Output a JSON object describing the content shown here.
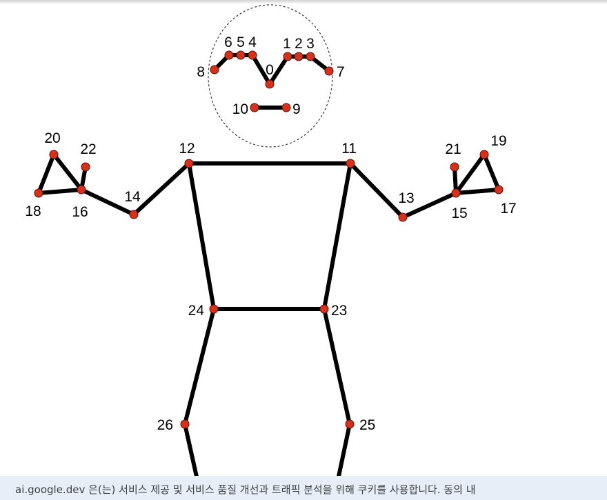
{
  "diagram": {
    "colors": {
      "bone": "#000000",
      "joint_fill": "#d9301a",
      "joint_stroke": "#5a0e04",
      "face_outline": "#333333",
      "label": "#000000"
    },
    "keypoints": [
      {
        "id": "0",
        "label": "0"
      },
      {
        "id": "1",
        "label": "1"
      },
      {
        "id": "2",
        "label": "2"
      },
      {
        "id": "3",
        "label": "3"
      },
      {
        "id": "4",
        "label": "4"
      },
      {
        "id": "5",
        "label": "5"
      },
      {
        "id": "6",
        "label": "6"
      },
      {
        "id": "7",
        "label": "7"
      },
      {
        "id": "8",
        "label": "8"
      },
      {
        "id": "9",
        "label": "9"
      },
      {
        "id": "10",
        "label": "10"
      },
      {
        "id": "11",
        "label": "11"
      },
      {
        "id": "12",
        "label": "12"
      },
      {
        "id": "13",
        "label": "13"
      },
      {
        "id": "14",
        "label": "14"
      },
      {
        "id": "15",
        "label": "15"
      },
      {
        "id": "16",
        "label": "16"
      },
      {
        "id": "17",
        "label": "17"
      },
      {
        "id": "18",
        "label": "18"
      },
      {
        "id": "19",
        "label": "19"
      },
      {
        "id": "20",
        "label": "20"
      },
      {
        "id": "21",
        "label": "21"
      },
      {
        "id": "22",
        "label": "22"
      },
      {
        "id": "23",
        "label": "23"
      },
      {
        "id": "24",
        "label": "24"
      },
      {
        "id": "25",
        "label": "25"
      },
      {
        "id": "26",
        "label": "26"
      }
    ],
    "connections": [
      [
        "8",
        "6"
      ],
      [
        "6",
        "5"
      ],
      [
        "5",
        "4"
      ],
      [
        "4",
        "0"
      ],
      [
        "0",
        "1"
      ],
      [
        "1",
        "2"
      ],
      [
        "2",
        "3"
      ],
      [
        "3",
        "7"
      ],
      [
        "10",
        "9"
      ],
      [
        "11",
        "12"
      ],
      [
        "12",
        "14"
      ],
      [
        "14",
        "16"
      ],
      [
        "16",
        "18"
      ],
      [
        "18",
        "20"
      ],
      [
        "20",
        "16"
      ],
      [
        "16",
        "22"
      ],
      [
        "11",
        "13"
      ],
      [
        "13",
        "15"
      ],
      [
        "15",
        "17"
      ],
      [
        "17",
        "19"
      ],
      [
        "19",
        "15"
      ],
      [
        "15",
        "21"
      ],
      [
        "12",
        "24"
      ],
      [
        "11",
        "23"
      ],
      [
        "23",
        "24"
      ],
      [
        "24",
        "26"
      ],
      [
        "23",
        "25"
      ],
      [
        "26",
        "26_off"
      ],
      [
        "25",
        "25_off"
      ]
    ]
  },
  "cookie_banner": {
    "text": "ai.google.dev 은(는) 서비스 제공 및 서비스 품질 개선과 트래픽 분석을 위해 쿠키를 사용합니다. 동의 내"
  }
}
